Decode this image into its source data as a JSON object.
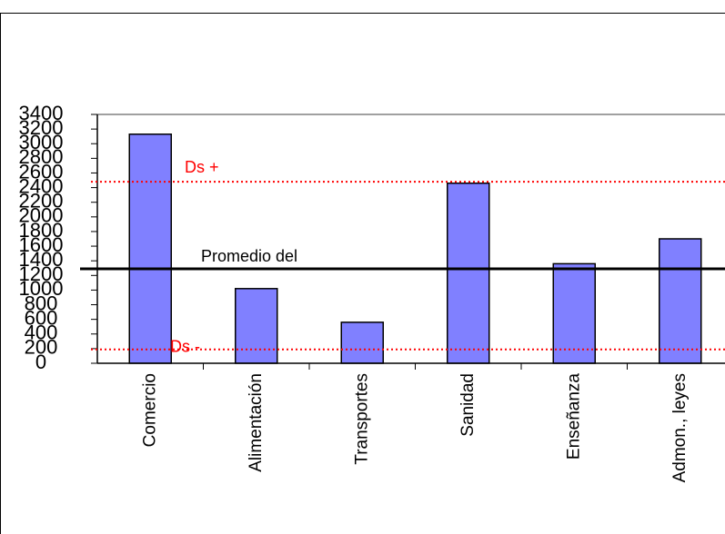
{
  "chart_data": {
    "type": "bar",
    "categories": [
      "Comercio",
      "Alimentación",
      "Transportes",
      "Sanidad",
      "Enseñanza",
      "Admon., leyes"
    ],
    "values": [
      3130,
      1020,
      560,
      2460,
      1360,
      1700
    ],
    "color": "#8080ff",
    "ylim": [
      0,
      3400
    ],
    "yticks": [
      0,
      200,
      400,
      600,
      800,
      1000,
      1200,
      1400,
      1600,
      1800,
      2000,
      2200,
      2400,
      2600,
      2800,
      3000,
      3200,
      3400
    ],
    "reference_lines": [
      {
        "label": "Ds +",
        "value": 2480,
        "color": "#ff0000",
        "style": "dotted"
      },
      {
        "label": "Promedio del",
        "value": 1290,
        "color": "#000000",
        "style": "solid"
      },
      {
        "label": "Ds -",
        "value": 190,
        "color": "#ff0000",
        "style": "dotted"
      }
    ]
  }
}
